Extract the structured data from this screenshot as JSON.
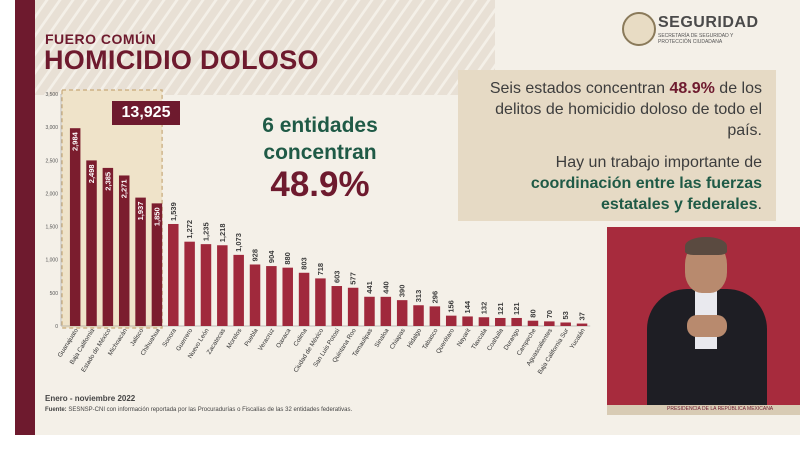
{
  "header": {
    "subtitle": "FUERO COMÚN",
    "title": "HOMICIDIO DOLOSO"
  },
  "logo": {
    "name": "SEGURIDAD",
    "subtext": "SECRETARÍA DE SEGURIDAD Y PROTECCIÓN CIUDADANA"
  },
  "callout": {
    "line1": "6 entidades",
    "line2": "concentran",
    "percent": "48.9%"
  },
  "total_badge": "13,925",
  "info": {
    "p1_pre": "Seis estados concentran ",
    "p1_hl": "48.9%",
    "p1_post": " de los delitos de homicidio doloso de todo el país.",
    "p2_pre": "Hay un trabajo importante de ",
    "p2_hl": "coordinación entre las fuerzas estatales y federales",
    "p2_post": "."
  },
  "footer": {
    "period": "Enero - noviembre 2022",
    "source_label": "Fuente:",
    "source": " SESNSP-CNI con información reportada por las Procuradurías o Fiscalías de las 32 entidades federativas."
  },
  "video_caption": "PRESIDENCIA DE LA REPÚBLICA MEXICANA",
  "colors": {
    "bar": "#a0293c",
    "bar_highlight": "#7b1d2e",
    "dark_red": "#6e1a2e",
    "green": "#1f5a46",
    "background": "#f4f0e8"
  },
  "chart_data": {
    "type": "bar",
    "categories": [
      "Guanajuato",
      "Baja California",
      "Estado de México",
      "Michoacán",
      "Jalisco",
      "Chihuahua",
      "Sonora",
      "Guerrero",
      "Nuevo León",
      "Zacatecas",
      "Morelos",
      "Puebla",
      "Veracruz",
      "Oaxaca",
      "Colima",
      "Ciudad de México",
      "San Luis Potosí",
      "Quintana Roo",
      "Tamaulipas",
      "Sinaloa",
      "Chiapas",
      "Hidalgo",
      "Tabasco",
      "Querétaro",
      "Nayarit",
      "Tlaxcala",
      "Coahuila",
      "Durango",
      "Campeche",
      "Aguascalientes",
      "Baja California Sur",
      "Yucatán"
    ],
    "values": [
      2984,
      2498,
      2385,
      2271,
      1937,
      1850,
      1539,
      1272,
      1235,
      1218,
      1073,
      928,
      904,
      880,
      803,
      718,
      603,
      577,
      441,
      440,
      390,
      313,
      296,
      156,
      144,
      132,
      121,
      121,
      80,
      70,
      53,
      37
    ],
    "value_labels": [
      "2,984",
      "2,498",
      "2,385",
      "2,271",
      "1,937",
      "1,850",
      "1,539",
      "1,272",
      "1,235",
      "1,218",
      "1,073",
      "928",
      "904",
      "880",
      "803",
      "718",
      "603",
      "577",
      "441",
      "440",
      "390",
      "313",
      "296",
      "156",
      "144",
      "132",
      "121",
      "121",
      "80",
      "70",
      "53",
      "37"
    ],
    "highlighted_count": 6,
    "ylim": [
      0,
      3500
    ],
    "yticks": [
      0,
      500,
      1000,
      1500,
      2000,
      2500,
      3000,
      3500
    ],
    "ytick_labels": [
      "0",
      "500",
      "1,000",
      "1,500",
      "2,000",
      "2,500",
      "3,000",
      "3,500"
    ],
    "grid": false
  }
}
